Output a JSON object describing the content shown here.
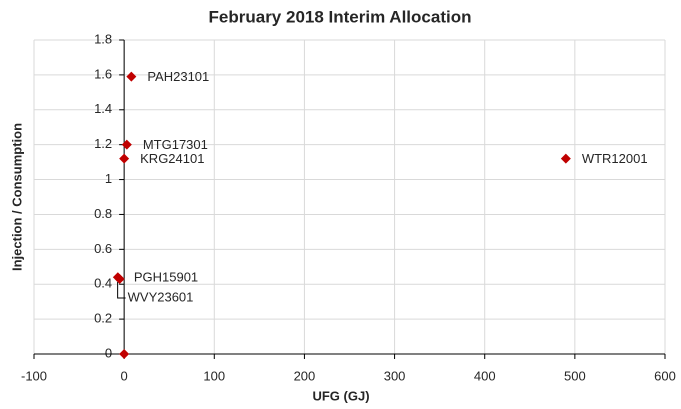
{
  "chart_data": {
    "type": "scatter",
    "title": "February 2018 Interim Allocation",
    "x_label": "UFG (GJ)",
    "y_label": "Injection / Consumption",
    "xlim": [
      -100,
      600
    ],
    "xticks": [
      -100,
      0,
      100,
      200,
      300,
      400,
      500,
      600
    ],
    "ylim": [
      0,
      1.8
    ],
    "yticks": [
      0,
      0.2,
      0.4,
      0.6,
      0.8,
      1,
      1.2,
      1.4,
      1.6,
      1.8
    ],
    "grid": true,
    "color": "#c00000",
    "series": [
      {
        "name": null,
        "color": "#c00000",
        "x": [
          8,
          3,
          0,
          490,
          -7,
          -5,
          0
        ],
        "values": [
          1.59,
          1.2,
          1.12,
          1.12,
          0.44,
          0.43,
          0
        ],
        "labels": [
          "PAH23101",
          "MTG17301",
          "KRG24101",
          "WTR12001",
          "PGH15901",
          "WVY23601",
          null
        ]
      }
    ]
  }
}
